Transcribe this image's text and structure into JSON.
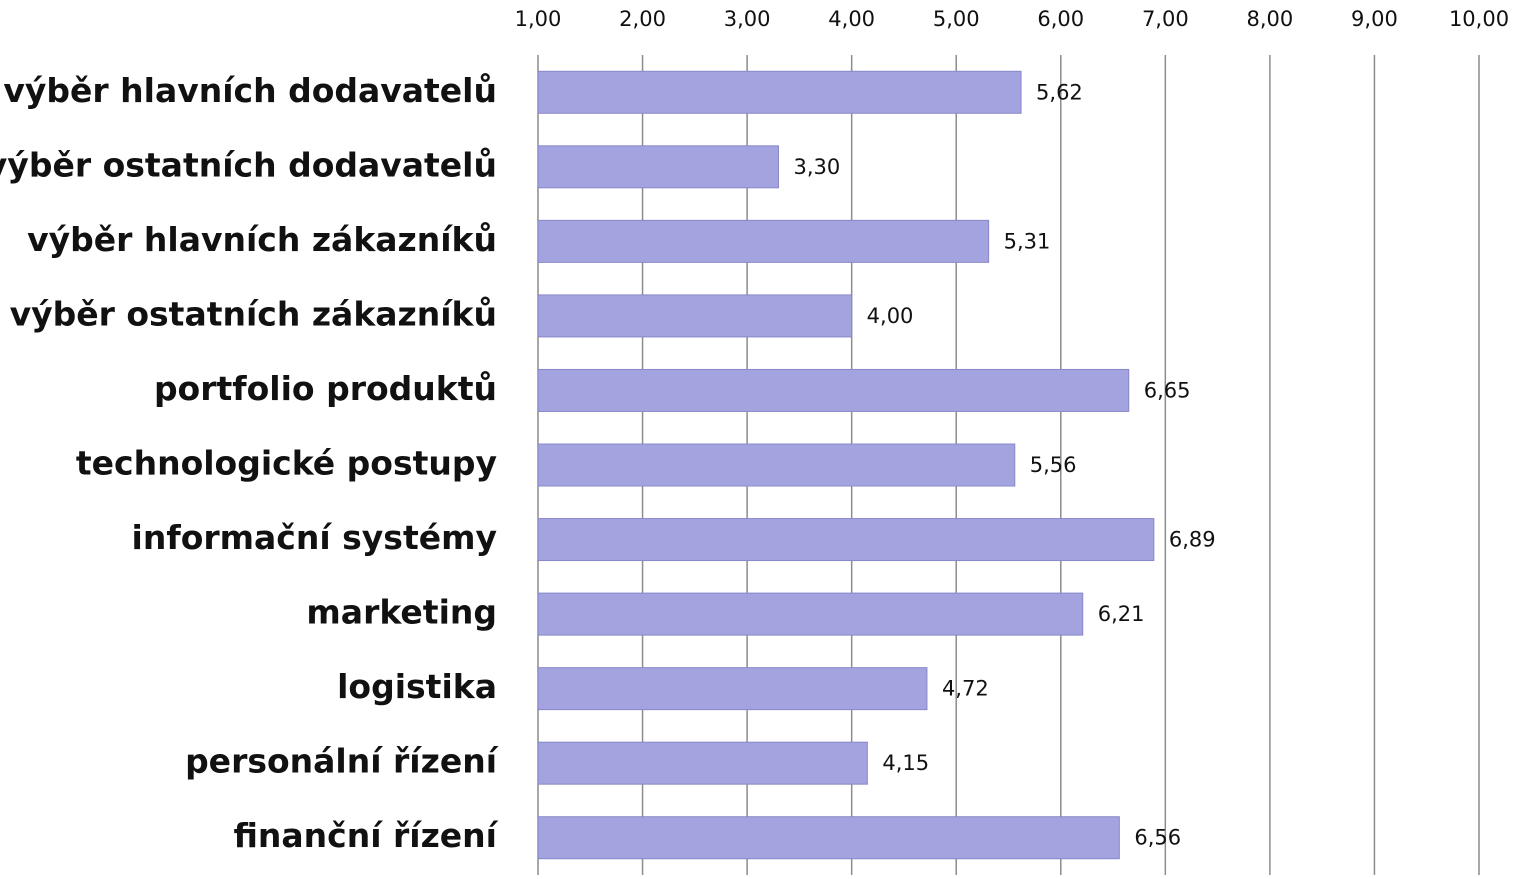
{
  "chart_data": {
    "type": "bar",
    "orientation": "horizontal",
    "categories": [
      "výběr hlavních dodavatelů",
      "výběr ostatních dodavatelů",
      "výběr hlavních zákazníků",
      "výběr ostatních zákazníků",
      "portfolio produktů",
      "technologické postupy",
      "informační systémy",
      "marketing",
      "logistika",
      "personální řízení",
      "finanční řízení"
    ],
    "values": [
      5.62,
      3.3,
      5.31,
      4.0,
      6.65,
      5.56,
      6.89,
      6.21,
      4.72,
      4.15,
      6.56
    ],
    "value_labels": [
      "5,62",
      "3,30",
      "5,31",
      "4,00",
      "6,65",
      "5,56",
      "6,89",
      "6,21",
      "4,72",
      "4,15",
      "6,56"
    ],
    "color": "#a3a3e0",
    "xlim": [
      1,
      10
    ],
    "xticks": [
      {
        "value": 1,
        "label": "1,00"
      },
      {
        "value": 2,
        "label": "2,00"
      },
      {
        "value": 3,
        "label": "3,00"
      },
      {
        "value": 4,
        "label": "4,00"
      },
      {
        "value": 5,
        "label": "5,00"
      },
      {
        "value": 6,
        "label": "6,00"
      },
      {
        "value": 7,
        "label": "7,00"
      },
      {
        "value": 8,
        "label": "8,00"
      },
      {
        "value": 9,
        "label": "9,00"
      },
      {
        "value": 10,
        "label": "10,00"
      }
    ],
    "grid": true
  }
}
